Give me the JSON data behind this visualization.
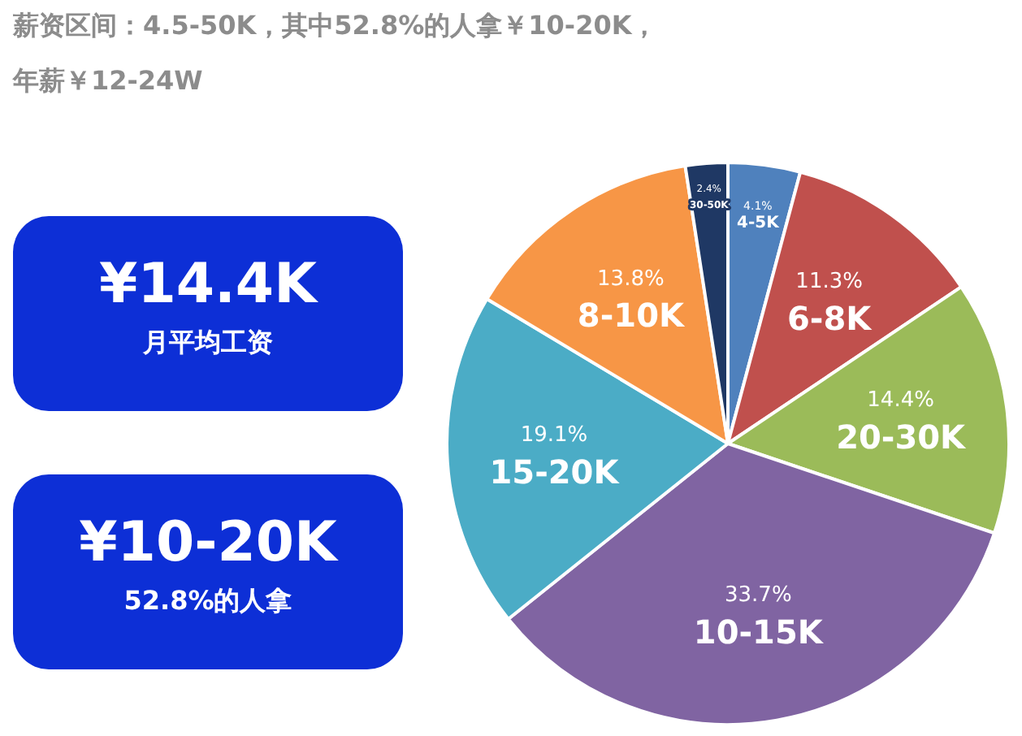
{
  "chart_data": [
    {
      "type": "pie",
      "title": "薪资区间：4.5-50K，其中52.8%的人拿￥10-20K，",
      "subtitle": "年薪￥12-24W",
      "categories": [
        "4-5K",
        "6-8K",
        "20-30K",
        "10-15K",
        "15-20K",
        "8-10K",
        "30-50K"
      ],
      "values": [
        4.1,
        11.3,
        14.4,
        33.7,
        19.1,
        13.8,
        2.4
      ],
      "colors": [
        "#4f81bd",
        "#c0504d",
        "#9bbb59",
        "#8064a2",
        "#4bacc6",
        "#f79646",
        "#1f3864"
      ],
      "value_labels": [
        "4.1%",
        "11.3%",
        "14.4%",
        "33.7%",
        "19.1%",
        "13.8%",
        "2.4%"
      ],
      "legend": false
    },
    {
      "type": "other",
      "title": "¥14.4K",
      "subtitle": "月平均工资"
    },
    {
      "type": "other",
      "title": "¥10-20K",
      "subtitle": "52.8%的人拿"
    }
  ]
}
